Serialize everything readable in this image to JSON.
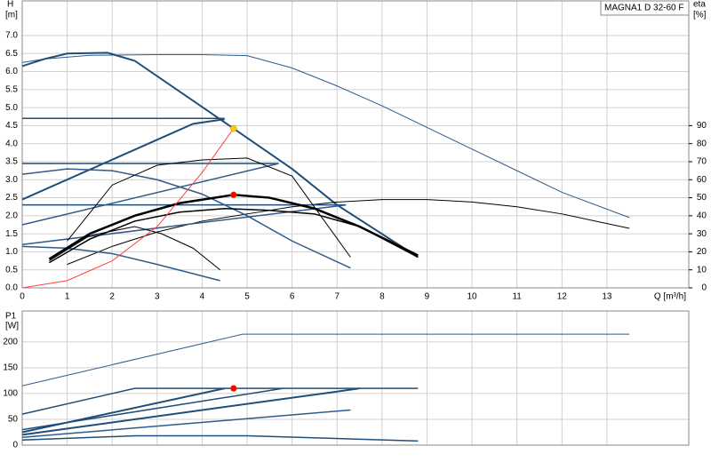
{
  "chart_data": [
    {
      "type": "line",
      "title": "MAGNA1 D 32-60 F",
      "xlabel": "Q [m³/h]",
      "ylabel": "H",
      "yunit": "[m]",
      "y2label": "eta",
      "y2unit": "[%]",
      "xlim": [
        0,
        14.82
      ],
      "ylim": [
        0,
        7.96
      ],
      "y2lim": [
        0,
        159.2
      ],
      "grid": true,
      "xticks": [
        0,
        1,
        2,
        3,
        4,
        5,
        6,
        7,
        8,
        9,
        10,
        11,
        12,
        13
      ],
      "yticks": [
        {
          "value": 0,
          "label": "0.0"
        },
        0.5,
        {
          "value": 1,
          "label": "1.0"
        },
        1.5,
        {
          "value": 2,
          "label": "2.0"
        },
        2.5,
        {
          "value": 3,
          "label": "3.0"
        },
        3.5,
        {
          "value": 4,
          "label": "4.0"
        },
        4.5,
        {
          "value": 5,
          "label": "5.0"
        },
        5.5,
        {
          "value": 6,
          "label": "6.0"
        },
        6.5,
        {
          "value": 7,
          "label": "7.0"
        }
      ],
      "y2ticks": [
        0,
        10,
        20,
        30,
        40,
        50,
        60,
        70,
        80,
        90
      ],
      "series": [
        {
          "color": "#2f5a8a",
          "linewidth": 1,
          "x": [
            0,
            0.5,
            1.5,
            3,
            4,
            5,
            6,
            7,
            8,
            9,
            10,
            11,
            12,
            13.5
          ],
          "values": [
            6.25,
            6.35,
            6.45,
            6.47,
            6.47,
            6.44,
            6.1,
            5.6,
            5.05,
            4.45,
            3.85,
            3.25,
            2.65,
            1.95
          ]
        },
        {
          "color": "#1f4e79",
          "linewidth": 2,
          "x": [
            0,
            0.5,
            1,
            1.9,
            2.5,
            4.7,
            6,
            7,
            8.8
          ],
          "values": [
            6.15,
            6.35,
            6.5,
            6.52,
            6.3,
            4.42,
            3.3,
            2.3,
            0.85
          ]
        },
        {
          "color": "#000000",
          "linewidth": 1,
          "x": [
            1,
            2,
            3,
            4,
            5,
            6,
            7,
            8,
            9,
            10,
            11,
            12,
            13.5
          ],
          "values": [
            0.65,
            1.15,
            1.55,
            1.85,
            2.05,
            2.25,
            2.38,
            2.45,
            2.45,
            2.38,
            2.25,
            2.05,
            1.65
          ]
        },
        {
          "color": "#1f4e79",
          "linewidth": 1.5,
          "x": [
            0,
            4.5
          ],
          "values": [
            4.7,
            4.7
          ]
        },
        {
          "color": "#1f4e79",
          "linewidth": 1.5,
          "x": [
            0,
            5.7
          ],
          "values": [
            3.45,
            3.45
          ]
        },
        {
          "color": "#1f4e79",
          "linewidth": 1.5,
          "x": [
            0,
            7.2
          ],
          "values": [
            2.3,
            2.3
          ]
        },
        {
          "color": "#1f4e79",
          "linewidth": 2,
          "x": [
            0,
            3.8,
            4.5
          ],
          "values": [
            2.45,
            4.55,
            4.68
          ]
        },
        {
          "color": "#2f5a8a",
          "linewidth": 1.5,
          "x": [
            0,
            5.7
          ],
          "values": [
            1.75,
            3.45
          ]
        },
        {
          "color": "#2f5a8a",
          "linewidth": 1.5,
          "x": [
            0,
            7.2
          ],
          "values": [
            1.2,
            2.3
          ]
        },
        {
          "color": "#2f5a8a",
          "linewidth": 1.5,
          "x": [
            0,
            1,
            2,
            3,
            4,
            5,
            6,
            7.3
          ],
          "values": [
            3.15,
            3.3,
            3.25,
            3.0,
            2.6,
            2.0,
            1.3,
            0.55
          ]
        },
        {
          "color": "#2f5a8a",
          "linewidth": 1.5,
          "x": [
            0,
            1,
            2,
            3,
            4.4
          ],
          "values": [
            1.15,
            1.1,
            0.95,
            0.65,
            0.2
          ]
        },
        {
          "color": "#000000",
          "linewidth": 1,
          "x": [
            1,
            2,
            3,
            4,
            5,
            6,
            7.3
          ],
          "values": [
            1.3,
            2.85,
            3.4,
            3.55,
            3.6,
            3.1,
            0.85
          ]
        },
        {
          "color": "#000000",
          "linewidth": 1,
          "x": [
            0.6,
            1.5,
            2.5,
            3.1,
            3.8,
            4.4
          ],
          "values": [
            0.75,
            1.45,
            1.7,
            1.5,
            1.1,
            0.5
          ]
        },
        {
          "color": "#000000",
          "linewidth": 2.5,
          "x": [
            0.6,
            1.5,
            2.5,
            3.5,
            4.7,
            5.5,
            6.5,
            7.5,
            8.8
          ],
          "values": [
            0.8,
            1.5,
            2.0,
            2.35,
            2.58,
            2.5,
            2.2,
            1.7,
            0.9
          ]
        },
        {
          "color": "#000000",
          "linewidth": 1.5,
          "x": [
            0.6,
            1.5,
            2.5,
            3.5,
            4.5,
            5.5,
            6.5,
            7.5,
            8.8
          ],
          "values": [
            0.7,
            1.35,
            1.85,
            2.1,
            2.2,
            2.15,
            2.05,
            1.7,
            0.85
          ]
        },
        {
          "color": "#ff4040",
          "linewidth": 1,
          "x": [
            0,
            1,
            2,
            3,
            4,
            4.7
          ],
          "values": [
            0,
            0.2,
            0.75,
            1.7,
            3.2,
            4.42
          ]
        }
      ],
      "points": [
        {
          "color": "#ffcc00",
          "x": 4.7,
          "y": 4.42
        },
        {
          "color": "#ff0000",
          "x": 4.7,
          "y": 2.58
        }
      ]
    },
    {
      "type": "line",
      "ylabel": "P1",
      "yunit": "[W]",
      "xlim": [
        0,
        14.82
      ],
      "ylim": [
        0,
        260
      ],
      "grid": true,
      "xticks": [
        0,
        1,
        2,
        3,
        4,
        5,
        6,
        7,
        8,
        9,
        10,
        11,
        12,
        13
      ],
      "yticks": [
        0,
        50,
        100,
        150,
        200
      ],
      "series": [
        {
          "color": "#2f5a8a",
          "linewidth": 1,
          "x": [
            0,
            4.9,
            13.5
          ],
          "values": [
            115,
            215,
            215
          ]
        },
        {
          "color": "#1f4e79",
          "linewidth": 1.5,
          "x": [
            0,
            2,
            2.5,
            8.8
          ],
          "values": [
            60,
            100,
            110,
            110
          ]
        },
        {
          "color": "#1f4e79",
          "linewidth": 2,
          "x": [
            0,
            4.5
          ],
          "values": [
            25,
            110
          ]
        },
        {
          "color": "#1f4e79",
          "linewidth": 1.5,
          "x": [
            0,
            5.8
          ],
          "values": [
            30,
            110
          ]
        },
        {
          "color": "#1f4e79",
          "linewidth": 2,
          "x": [
            0,
            7.1,
            7.5
          ],
          "values": [
            20,
            105,
            110
          ]
        },
        {
          "color": "#2f5a8a",
          "linewidth": 1.5,
          "x": [
            0,
            7.3
          ],
          "values": [
            15,
            68
          ]
        },
        {
          "color": "#1f4e79",
          "linewidth": 1.5,
          "x": [
            0,
            2.5,
            5,
            8.8
          ],
          "values": [
            10,
            18,
            18,
            8
          ]
        }
      ],
      "points": [
        {
          "color": "#ff0000",
          "x": 4.7,
          "y": 110
        }
      ]
    }
  ]
}
